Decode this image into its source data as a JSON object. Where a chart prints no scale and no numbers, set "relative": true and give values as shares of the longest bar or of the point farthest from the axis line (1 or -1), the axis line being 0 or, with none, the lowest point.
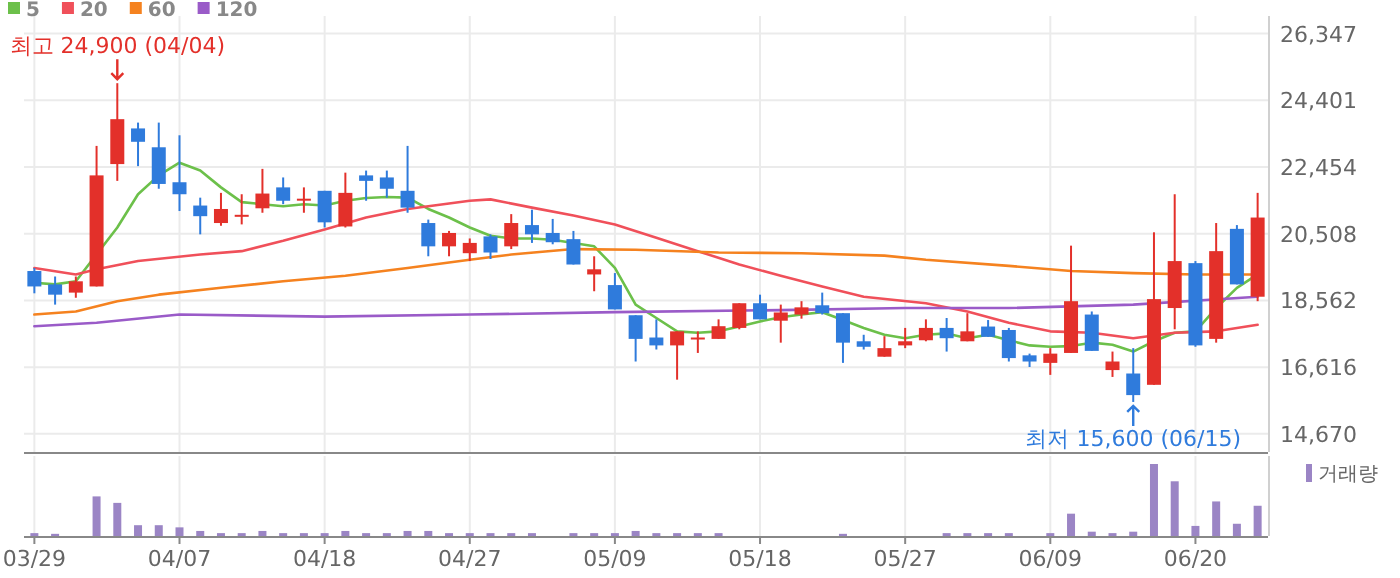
{
  "chart_data": [
    {
      "type": "candlestick",
      "categories": [
        null,
        null,
        null,
        null,
        null,
        null,
        null,
        null,
        null,
        null,
        null,
        null,
        null,
        null,
        null,
        null,
        null,
        null,
        null,
        null,
        null,
        null,
        null,
        null,
        null,
        null,
        null,
        null,
        null,
        null,
        null,
        null,
        null,
        null,
        null,
        null,
        null,
        null,
        null,
        null,
        null,
        null,
        null,
        null,
        null,
        null,
        null,
        null,
        null,
        null,
        null,
        null,
        null,
        null,
        null,
        null,
        null,
        null,
        null,
        null
      ],
      "ohlc": [
        [
          19420,
          19510,
          18770,
          18970
        ],
        [
          19030,
          19260,
          18440,
          18730
        ],
        [
          18790,
          19260,
          18640,
          19120
        ],
        [
          18970,
          23070,
          18970,
          22210
        ],
        [
          22540,
          24900,
          22050,
          23850
        ],
        [
          23580,
          23750,
          22480,
          23190
        ],
        [
          23030,
          23750,
          21820,
          21960
        ],
        [
          22010,
          23380,
          21170,
          21660
        ],
        [
          21330,
          21560,
          20490,
          21020
        ],
        [
          20820,
          21700,
          20740,
          21230
        ],
        [
          21020,
          21660,
          20780,
          21060
        ],
        [
          21250,
          22400,
          21120,
          21680
        ],
        [
          21860,
          22150,
          21370,
          21470
        ],
        [
          21490,
          21860,
          21120,
          21530
        ],
        [
          21760,
          21760,
          20690,
          20840
        ],
        [
          20720,
          22290,
          20690,
          21700
        ],
        [
          22210,
          22350,
          21470,
          22050
        ],
        [
          22150,
          22350,
          21560,
          21820
        ],
        [
          21760,
          23070,
          21120,
          21270
        ],
        [
          20820,
          20920,
          19850,
          20140
        ],
        [
          20140,
          20590,
          19850,
          20530
        ],
        [
          19940,
          20370,
          19710,
          20240
        ],
        [
          20430,
          20490,
          19770,
          19960
        ],
        [
          20140,
          21080,
          20060,
          20820
        ],
        [
          20760,
          21210,
          20240,
          20490
        ],
        [
          20530,
          20940,
          20200,
          20260
        ],
        [
          20350,
          20590,
          19610,
          19610
        ],
        [
          19320,
          19850,
          18830,
          19470
        ],
        [
          19010,
          19360,
          18300,
          18300
        ],
        [
          18130,
          18130,
          16780,
          17440
        ],
        [
          17480,
          18010,
          17130,
          17250
        ],
        [
          17250,
          17660,
          16250,
          17660
        ],
        [
          17440,
          17660,
          17030,
          17480
        ],
        [
          17440,
          18010,
          17440,
          17810
        ],
        [
          17760,
          18480,
          17720,
          18480
        ],
        [
          18480,
          18730,
          18010,
          18010
        ],
        [
          17970,
          18440,
          17330,
          18210
        ],
        [
          18150,
          18540,
          18030,
          18360
        ],
        [
          18420,
          18790,
          18150,
          18190
        ],
        [
          18190,
          18190,
          16740,
          17330
        ],
        [
          17370,
          17560,
          17130,
          17210
        ],
        [
          16920,
          17520,
          16920,
          17170
        ],
        [
          17250,
          17760,
          17170,
          17370
        ],
        [
          17400,
          18010,
          17370,
          17760
        ],
        [
          17760,
          18050,
          17070,
          17460
        ],
        [
          17370,
          18190,
          17370,
          17660
        ],
        [
          17800,
          17990,
          17500,
          17500
        ],
        [
          17700,
          17760,
          16780,
          16880
        ],
        [
          16960,
          17010,
          16620,
          16780
        ],
        [
          16740,
          17170,
          16390,
          17010
        ],
        [
          17030,
          20160,
          17030,
          18540
        ],
        [
          18150,
          18240,
          17090,
          17090
        ],
        [
          16530,
          17070,
          16330,
          16780
        ],
        [
          16430,
          17170,
          15600,
          15800
        ],
        [
          16100,
          20550,
          16100,
          18600
        ],
        [
          18340,
          21660,
          17720,
          19710
        ],
        [
          19650,
          19710,
          17210,
          17250
        ],
        [
          17440,
          20820,
          17330,
          20000
        ],
        [
          20650,
          20760,
          19030,
          19030
        ],
        [
          18670,
          21700,
          18540,
          20980
        ]
      ],
      "colors": [
        "#2f7bdc",
        "#2f7bdc",
        "#e3302a",
        "#e3302a",
        "#e3302a",
        "#2f7bdc",
        "#2f7bdc",
        "#2f7bdc",
        "#2f7bdc",
        "#e3302a",
        "#e3302a",
        "#e3302a",
        "#2f7bdc",
        "#e3302a",
        "#2f7bdc",
        "#e3302a",
        "#2f7bdc",
        "#2f7bdc",
        "#2f7bdc",
        "#2f7bdc",
        "#e3302a",
        "#e3302a",
        "#2f7bdc",
        "#e3302a",
        "#2f7bdc",
        "#2f7bdc",
        "#2f7bdc",
        "#e3302a",
        "#2f7bdc",
        "#2f7bdc",
        "#2f7bdc",
        "#e3302a",
        "#e3302a",
        "#e3302a",
        "#e3302a",
        "#2f7bdc",
        "#e3302a",
        "#e3302a",
        "#2f7bdc",
        "#2f7bdc",
        "#2f7bdc",
        "#e3302a",
        "#e3302a",
        "#e3302a",
        "#2f7bdc",
        "#e3302a",
        "#2f7bdc",
        "#2f7bdc",
        "#2f7bdc",
        "#e3302a",
        "#e3302a",
        "#2f7bdc",
        "#e3302a",
        "#2f7bdc",
        "#e3302a",
        "#e3302a",
        "#2f7bdc",
        "#e3302a",
        "#2f7bdc",
        "#e3302a"
      ],
      "series": [
        {
          "name": "5",
          "type": "line",
          "color": "#6cc04a",
          "values": [
            19080,
            19030,
            19120,
            null,
            20690,
            21660,
            22210,
            22580,
            22350,
            21860,
            21430,
            21370,
            21310,
            21370,
            21330,
            21470,
            21550,
            21580,
            21560,
            21230,
            20980,
            20690,
            20450,
            20370,
            20370,
            20330,
            20240,
            20140,
            19510,
            18440,
            18050,
            17660,
            17620,
            17660,
            17800,
            17950,
            18070,
            18150,
            18220,
            17990,
            17760,
            17560,
            17460,
            17560,
            17600,
            17460,
            17560,
            17400,
            17250,
            17210,
            17230,
            17330,
            17270,
            17070,
            17370,
            17620,
            17660,
            18340,
            18930,
            19320
          ]
        },
        {
          "name": "20",
          "type": "line",
          "color": "#f0505a",
          "values": [
            19510,
            null,
            19320,
            19470,
            null,
            19710,
            null,
            null,
            19900,
            null,
            20000,
            null,
            20300,
            null,
            20630,
            null,
            20980,
            null,
            21230,
            null,
            null,
            21470,
            21510,
            null,
            21270,
            null,
            21040,
            null,
            20780,
            null,
            20390,
            null,
            20000,
            null,
            19610,
            null,
            19280,
            null,
            18970,
            null,
            18670,
            null,
            null,
            18480,
            null,
            18240,
            null,
            17910,
            null,
            17660,
            null,
            17620,
            null,
            17460,
            null,
            17620,
            null,
            17660,
            null,
            17850
          ]
        },
        {
          "name": "60",
          "type": "line",
          "color": "#f5821f",
          "values": [
            18150,
            null,
            18240,
            null,
            18540,
            null,
            18730,
            null,
            null,
            18930,
            null,
            null,
            19120,
            null,
            null,
            19280,
            null,
            null,
            19510,
            null,
            null,
            19750,
            null,
            19900,
            null,
            null,
            20060,
            null,
            null,
            20040,
            null,
            null,
            null,
            19960,
            null,
            null,
            null,
            19940,
            null,
            null,
            null,
            19870,
            null,
            19750,
            null,
            null,
            null,
            19570,
            null,
            null,
            19420,
            null,
            null,
            19360,
            null,
            null,
            19320,
            null,
            null,
            19320
          ]
        },
        {
          "name": "120",
          "type": "line",
          "color": "#9a5bc8",
          "values": [
            17810,
            null,
            null,
            17910,
            null,
            null,
            null,
            18150,
            null,
            null,
            null,
            null,
            null,
            null,
            18090,
            null,
            null,
            null,
            null,
            null,
            null,
            18150,
            null,
            null,
            null,
            null,
            null,
            null,
            18220,
            null,
            null,
            null,
            null,
            null,
            null,
            null,
            18280,
            null,
            null,
            null,
            null,
            null,
            18340,
            null,
            null,
            null,
            null,
            18340,
            null,
            null,
            null,
            null,
            null,
            18440,
            null,
            null,
            null,
            null,
            null,
            18670
          ]
        }
      ],
      "ylim": [
        14140,
        26860
      ],
      "yticks": [
        {
          "value": 26347,
          "label": "26,347"
        },
        {
          "value": 24401,
          "label": "24,401"
        },
        {
          "value": 22454,
          "label": "22,454"
        },
        {
          "value": 20508,
          "label": "20,508"
        },
        {
          "value": 18562,
          "label": "18,562"
        },
        {
          "value": 16616,
          "label": "16,616"
        },
        {
          "value": 14670,
          "label": "14,670"
        }
      ],
      "grid": true,
      "legend": "top left",
      "tick_labels": "y",
      "annotations": [
        {
          "text": "최고 24,900 (04/04)",
          "y": 24900
        },
        {
          "text": "최저 15,600 (06/15)",
          "y": 15600
        }
      ]
    },
    {
      "type": "bar",
      "relative": true,
      "categories": [
        "03/29",
        null,
        null,
        null,
        null,
        null,
        null,
        "04/07",
        null,
        null,
        null,
        null,
        null,
        null,
        "04/18",
        null,
        null,
        null,
        null,
        null,
        null,
        "04/27",
        null,
        null,
        null,
        null,
        null,
        null,
        "05/09",
        null,
        null,
        null,
        null,
        null,
        null,
        "05/18",
        null,
        null,
        null,
        null,
        null,
        null,
        "05/27",
        null,
        null,
        null,
        null,
        null,
        null,
        "06/09",
        null,
        null,
        null,
        null,
        null,
        null,
        "06/20",
        null,
        null,
        null
      ],
      "series": [
        {
          "name": "거래량",
          "color": "#9b85c5",
          "values": [
            0.04,
            0.03,
            0,
            0.55,
            0.46,
            0.15,
            0.15,
            0.12,
            0.07,
            0.04,
            0.04,
            0.07,
            0.04,
            0.04,
            0.04,
            0.07,
            0.04,
            0.04,
            0.07,
            0.07,
            0.04,
            0.04,
            0.04,
            0.04,
            0.04,
            0,
            0.04,
            0.04,
            0.04,
            0.07,
            0.04,
            0.04,
            0.04,
            0.04,
            0,
            0,
            0,
            0,
            0,
            0.03,
            0,
            0,
            0,
            0,
            0.04,
            0.04,
            0.04,
            0.04,
            0,
            0.04,
            0.31,
            0.06,
            0.04,
            0.06,
            1,
            0.76,
            0.14,
            0.48,
            0.17,
            0.42
          ]
        }
      ],
      "grid": "x",
      "legend": "top right",
      "tick_labels": "x"
    }
  ]
}
